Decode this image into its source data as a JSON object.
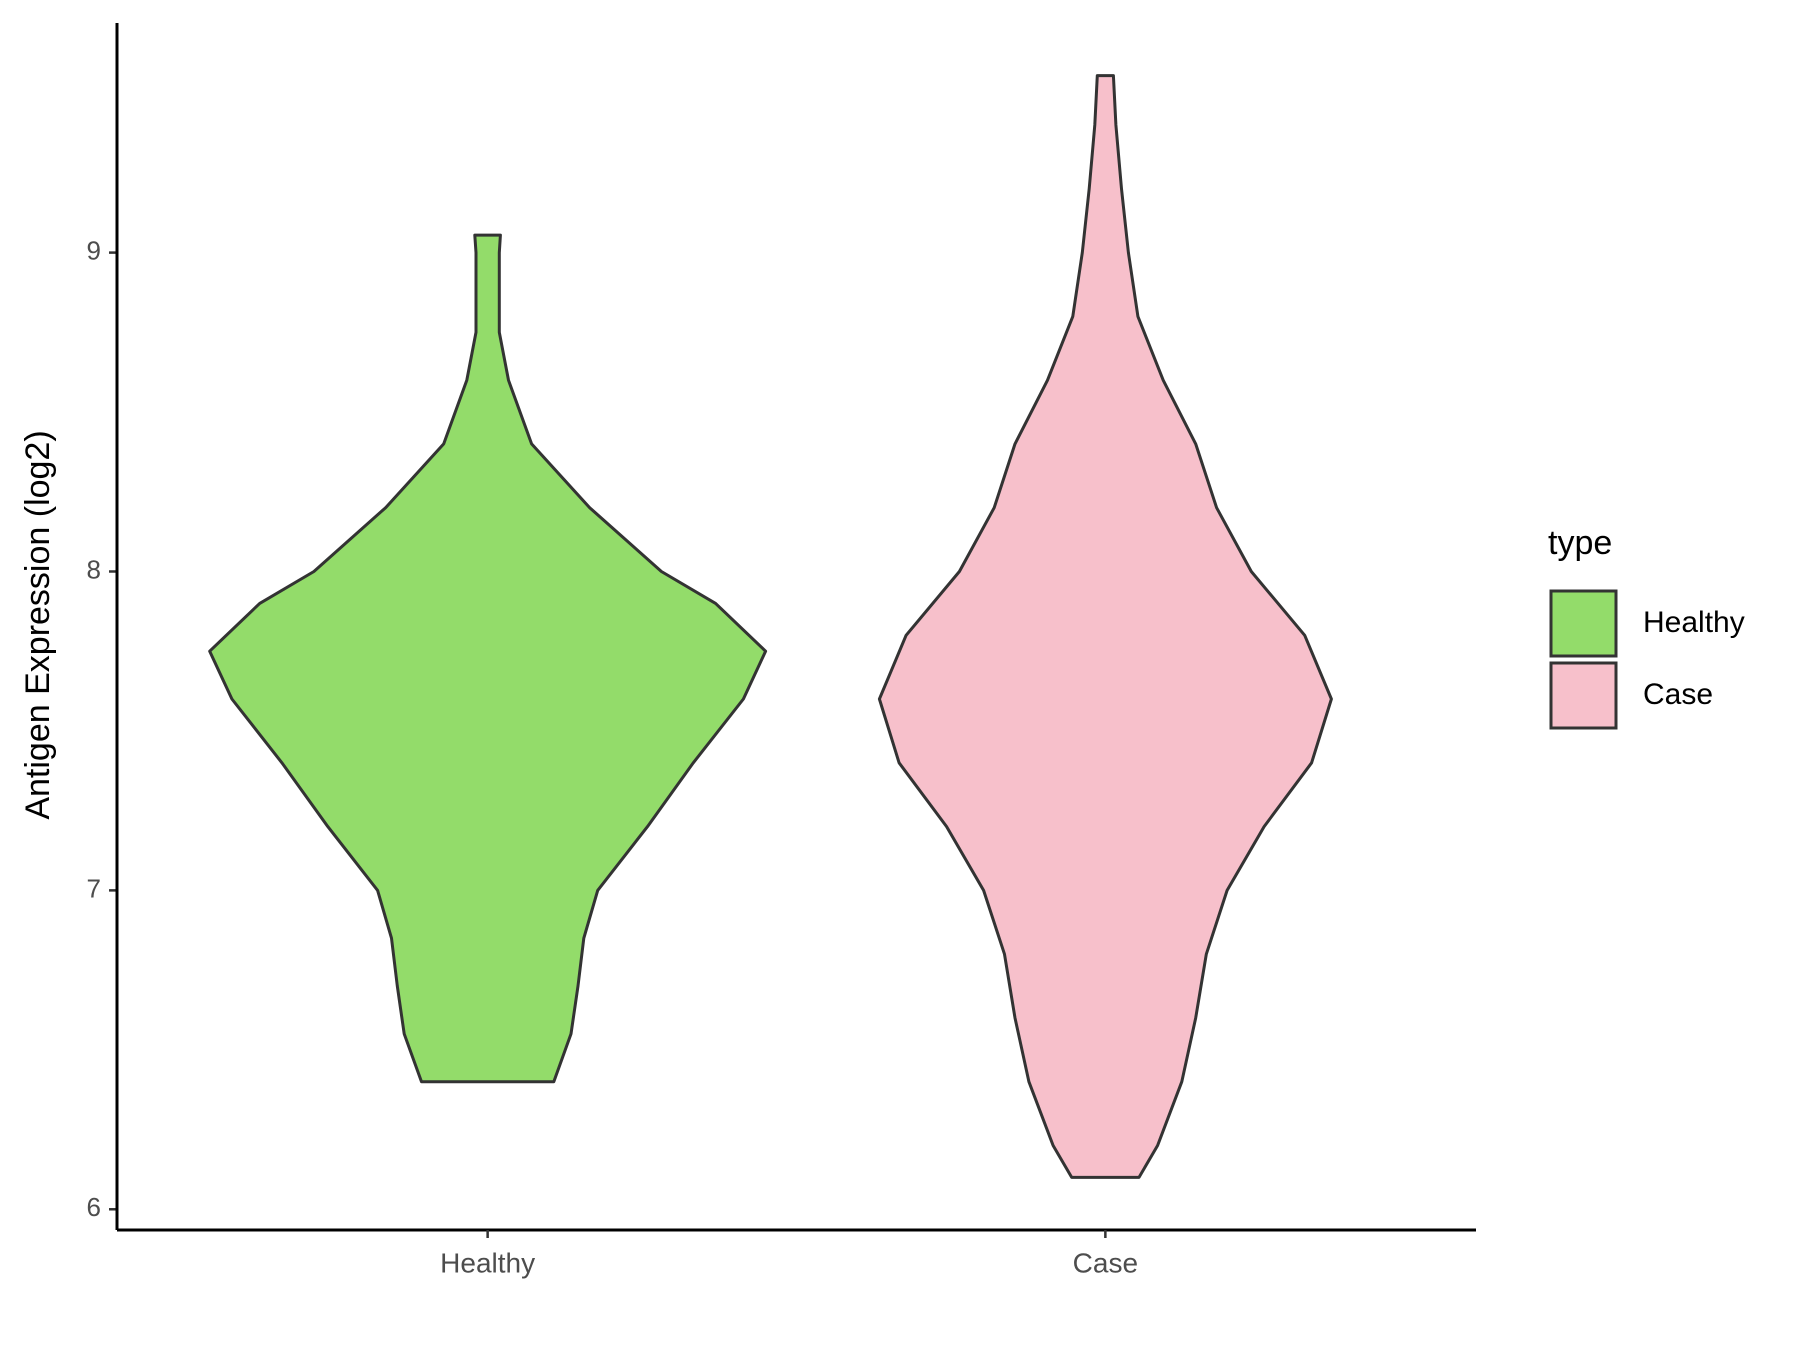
{
  "chart_data": {
    "type": "violin",
    "ylabel": "Antigen Expression (log2)",
    "categories": [
      "Healthy",
      "Case"
    ],
    "legend_title": "type",
    "ylim": [
      5.935,
      9.72
    ],
    "yticks": [
      6,
      7,
      8,
      9
    ],
    "series": [
      {
        "name": "Healthy",
        "color": "#93dc6a",
        "y": [
          9.055,
          9.0,
          8.75,
          8.6,
          8.4,
          8.2,
          8.0,
          7.9,
          7.75,
          7.6,
          7.4,
          7.2,
          7.0,
          6.85,
          6.7,
          6.55,
          6.4
        ],
        "density": [
          0.046,
          0.042,
          0.042,
          0.075,
          0.158,
          0.367,
          0.625,
          0.82,
          1,
          0.92,
          0.74,
          0.575,
          0.396,
          0.346,
          0.325,
          0.3,
          0.238
        ]
      },
      {
        "name": "Case",
        "color": "#f7c0cb",
        "y": [
          9.555,
          9.4,
          9.2,
          9.0,
          8.8,
          8.6,
          8.4,
          8.2,
          8.0,
          7.8,
          7.6,
          7.4,
          7.2,
          7.0,
          6.8,
          6.6,
          6.4,
          6.2,
          6.1
        ],
        "density": [
          0.029,
          0.038,
          0.058,
          0.083,
          0.117,
          0.208,
          0.325,
          0.4,
          0.525,
          0.717,
          0.813,
          0.742,
          0.571,
          0.438,
          0.363,
          0.325,
          0.275,
          0.188,
          0.121
        ]
      }
    ]
  }
}
